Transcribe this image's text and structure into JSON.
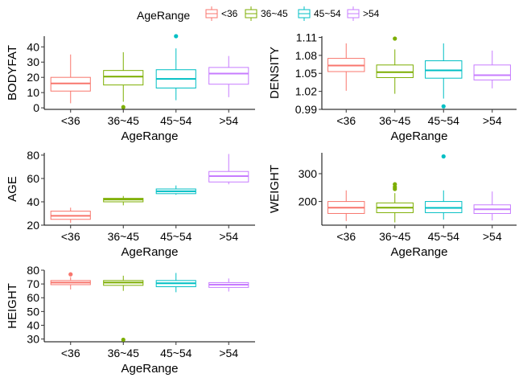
{
  "legend": {
    "title": "AgeRange",
    "position": "top",
    "entries": [
      {
        "label": "<36",
        "color": "#F8766D"
      },
      {
        "label": "36~45",
        "color": "#7CAE00"
      },
      {
        "label": "45~54",
        "color": "#00BFC4"
      },
      {
        "label": ">54",
        "color": "#C77CFF"
      }
    ]
  },
  "chart_data": [
    {
      "type": "boxplot",
      "xlabel": "AgeRange",
      "ylabel": "BODYFAT",
      "categories": [
        "<36",
        "36~45",
        "45~54",
        ">54"
      ],
      "ylim": [
        -1,
        47
      ],
      "yticks": [
        0,
        10,
        20,
        30,
        40
      ],
      "boxes": [
        {
          "min": 3,
          "q1": 11,
          "median": 16,
          "q3": 20,
          "max": 35,
          "outliers": []
        },
        {
          "min": 4,
          "q1": 15,
          "median": 20.5,
          "q3": 24.5,
          "max": 36.5,
          "outliers": [
            0.5
          ]
        },
        {
          "min": 5,
          "q1": 13,
          "median": 19,
          "q3": 25,
          "max": 39,
          "outliers": [
            47
          ]
        },
        {
          "min": 7,
          "q1": 15.5,
          "median": 22.5,
          "q3": 26.5,
          "max": 34,
          "outliers": []
        }
      ]
    },
    {
      "type": "boxplot",
      "xlabel": "AgeRange",
      "ylabel": "DENSITY",
      "categories": [
        "<36",
        "36~45",
        "45~54",
        ">54"
      ],
      "ylim": [
        0.99,
        1.112
      ],
      "yticks": [
        0.99,
        1.02,
        1.05,
        1.08,
        1.11
      ],
      "ytick_labels": [
        "0.99",
        "1.02",
        "1.05",
        "1.08",
        "1.11"
      ],
      "boxes": [
        {
          "min": 1.021,
          "q1": 1.053,
          "median": 1.063,
          "q3": 1.075,
          "max": 1.1,
          "outliers": []
        },
        {
          "min": 1.016,
          "q1": 1.043,
          "median": 1.052,
          "q3": 1.064,
          "max": 1.09,
          "outliers": [
            1.108
          ]
        },
        {
          "min": 1.008,
          "q1": 1.042,
          "median": 1.055,
          "q3": 1.071,
          "max": 1.1,
          "outliers": [
            0.995
          ]
        },
        {
          "min": 1.025,
          "q1": 1.039,
          "median": 1.047,
          "q3": 1.064,
          "max": 1.088,
          "outliers": []
        }
      ]
    },
    {
      "type": "boxplot",
      "xlabel": "AgeRange",
      "ylabel": "AGE",
      "categories": [
        "<36",
        "36~45",
        "45~54",
        ">54"
      ],
      "ylim": [
        20,
        82
      ],
      "yticks": [
        20,
        40,
        60,
        80
      ],
      "boxes": [
        {
          "min": 22,
          "q1": 25,
          "median": 28,
          "q3": 32,
          "max": 35,
          "outliers": []
        },
        {
          "min": 37,
          "q1": 40,
          "median": 42,
          "q3": 43,
          "max": 45,
          "outliers": []
        },
        {
          "min": 46,
          "q1": 47,
          "median": 49,
          "q3": 51,
          "max": 54,
          "outliers": []
        },
        {
          "min": 55,
          "q1": 57,
          "median": 62,
          "q3": 66,
          "max": 81,
          "outliers": []
        }
      ]
    },
    {
      "type": "boxplot",
      "xlabel": "AgeRange",
      "ylabel": "WEIGHT",
      "categories": [
        "<36",
        "36~45",
        "45~54",
        ">54"
      ],
      "ylim": [
        115,
        375
      ],
      "yticks": [
        200,
        300
      ],
      "boxes": [
        {
          "min": 130,
          "q1": 157,
          "median": 178,
          "q3": 200,
          "max": 240,
          "outliers": []
        },
        {
          "min": 125,
          "q1": 160,
          "median": 178,
          "q3": 195,
          "max": 230,
          "outliers": [
            245,
            252,
            262
          ]
        },
        {
          "min": 135,
          "q1": 160,
          "median": 177,
          "q3": 200,
          "max": 240,
          "outliers": [
            362
          ]
        },
        {
          "min": 132,
          "q1": 157,
          "median": 172,
          "q3": 188,
          "max": 236,
          "outliers": []
        }
      ]
    },
    {
      "type": "boxplot",
      "xlabel": "AgeRange",
      "ylabel": "HEIGHT",
      "categories": [
        "<36",
        "36~45",
        "45~54",
        ">54"
      ],
      "ylim": [
        28,
        80
      ],
      "yticks": [
        30,
        40,
        50,
        60,
        70,
        80
      ],
      "boxes": [
        {
          "min": 66,
          "q1": 69.5,
          "median": 71,
          "q3": 72.5,
          "max": 75,
          "outliers": [
            77
          ]
        },
        {
          "min": 65,
          "q1": 69,
          "median": 71,
          "q3": 72.5,
          "max": 76,
          "outliers": [
            29.5
          ]
        },
        {
          "min": 64,
          "q1": 68,
          "median": 70.5,
          "q3": 72.5,
          "max": 78,
          "outliers": []
        },
        {
          "min": 64.5,
          "q1": 67.5,
          "median": 69.5,
          "q3": 71,
          "max": 74,
          "outliers": []
        }
      ]
    }
  ]
}
